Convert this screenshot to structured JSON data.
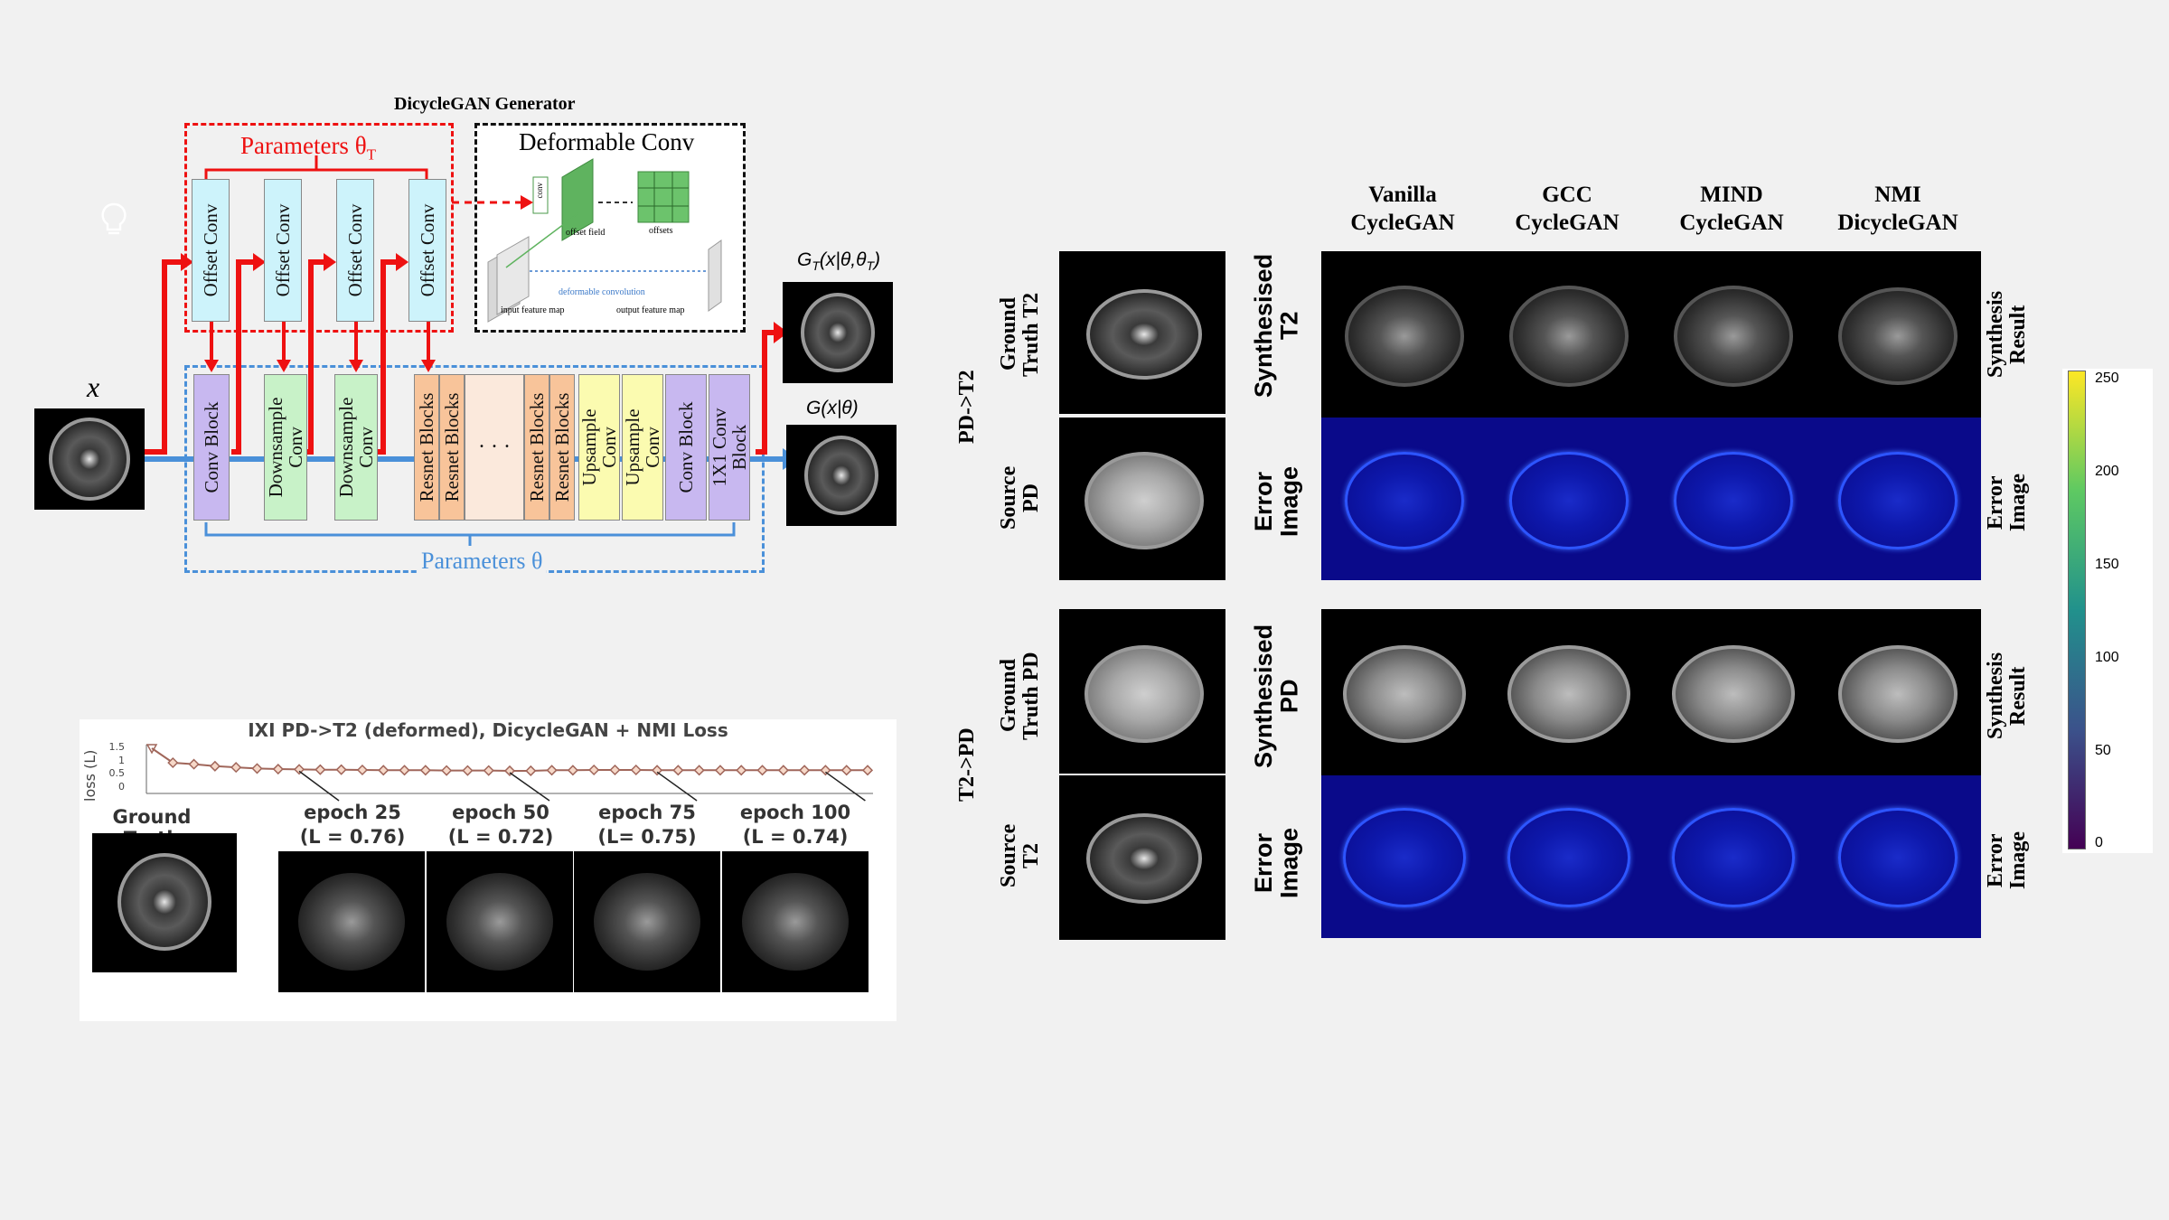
{
  "generator": {
    "title": "DicycleGAN Generator",
    "params_T_label": "Parameters θ",
    "params_T_sub": "T",
    "params_label": "Parameters θ",
    "deform_title": "Deformable Conv",
    "deform_labels": {
      "conv": "conv",
      "offset_field": "offset field",
      "offsets": "offsets",
      "deform_conv": "deformable convolution",
      "input_map": "input feature map",
      "output_map": "output feature map"
    },
    "input_label": "x",
    "output_top_label": "G",
    "output_top_sub": "T",
    "output_top_args": "(x|θ,θ",
    "output_top_close": ")",
    "output_bottom_label": "G(x|θ)",
    "offset_blocks": [
      "Offset Conv",
      "Offset Conv",
      "Offset Conv",
      "Offset Conv"
    ],
    "main_blocks": [
      "Conv Block",
      "Downsample\nConv",
      "Downsample\nConv",
      "Resnet Blocks",
      "Resnet Blocks",
      "Resnet Blocks",
      "Resnet Blocks",
      "Upsample\nConv",
      "Upsample\nConv",
      "Conv Block",
      "1X1 Conv\nBlock"
    ],
    "ellipsis": "· · ·"
  },
  "loss_panel": {
    "title": "IXI PD->T2 (deformed), DicycleGAN + NMI Loss",
    "ylabel": "loss (L)",
    "yticks": [
      "1.5",
      "1",
      "0.5",
      "0"
    ],
    "ground_truth_label": "Ground Truth",
    "epochs": [
      "epoch 25\n(L = 0.76)",
      "epoch 50\n(L = 0.72)",
      "epoch 75\n(L= 0.75)",
      "epoch 100\n(L = 0.74)"
    ]
  },
  "chart_data": {
    "type": "line",
    "ylabel": "loss (L)",
    "ylim": [
      0,
      1.5
    ],
    "y": [
      1.5,
      1.0,
      0.95,
      0.88,
      0.84,
      0.8,
      0.78,
      0.77,
      0.76,
      0.76,
      0.75,
      0.74,
      0.74,
      0.74,
      0.73,
      0.73,
      0.73,
      0.72,
      0.72,
      0.74,
      0.74,
      0.75,
      0.75,
      0.75,
      0.74,
      0.74,
      0.74,
      0.74,
      0.74,
      0.74,
      0.74,
      0.74,
      0.74,
      0.74,
      0.74
    ]
  },
  "results": {
    "col_headers": [
      "Vanilla\nCycleGAN",
      "GCC\nCycleGAN",
      "MIND\nCycleGAN",
      "NMI\nDicycleGAN"
    ],
    "sections": [
      {
        "name": "PD->T2",
        "gt_label": "Ground\nTruth T2",
        "src_label": "Source\nPD",
        "syn_label": "Synthesised\nT2",
        "err_label": "Error\nImage",
        "right_top": "Synthesis\nResult",
        "right_bottom": "Error\nImage"
      },
      {
        "name": "T2->PD",
        "gt_label": "Ground\nTruth PD",
        "src_label": "Source\nT2",
        "syn_label": "Synthesised\nPD",
        "err_label": "Error\nImage",
        "right_top": "Synthesis\nResult",
        "right_bottom": "Error\nImage"
      }
    ]
  },
  "colorbar": {
    "ticks": [
      "250",
      "200",
      "150",
      "100",
      "50",
      "0"
    ],
    "colormap": [
      "#fde725",
      "#5ec962",
      "#21918c",
      "#3b528b",
      "#440154"
    ]
  },
  "colors": {
    "red": "#ee1111",
    "blue": "#4a90d9",
    "offset_block": "#cdf3fb",
    "conv_block": "#c8b8f0",
    "downsample": "#c8f2c8",
    "resnet": "#f8c49a",
    "upsample": "#fbfbb0"
  }
}
